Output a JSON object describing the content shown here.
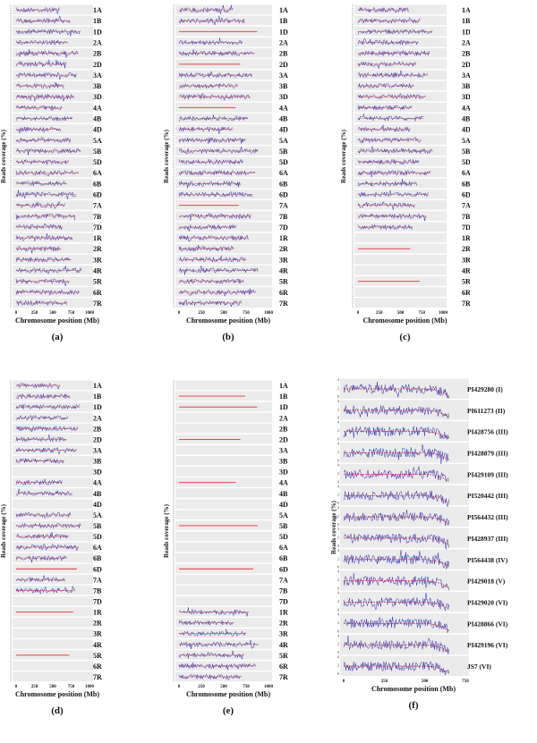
{
  "chart_data": [
    {
      "type": "line",
      "panel_label": "(a)",
      "xlabel": "Chromosome position (Mb)",
      "ylabel": "Reads coverage (%)",
      "xticks": [
        "0",
        "250",
        "500",
        "750",
        "1000"
      ],
      "xlim": [
        0,
        1000
      ],
      "rows": [
        "1A",
        "1B",
        "1D",
        "2A",
        "2B",
        "2D",
        "3A",
        "3B",
        "3D",
        "4A",
        "4B",
        "4D",
        "5A",
        "5B",
        "5D",
        "6A",
        "6B",
        "6D",
        "7A",
        "7B",
        "7D",
        "1R",
        "2R",
        "3R",
        "4R",
        "5R",
        "6R",
        "7R"
      ],
      "coverage": [
        "full",
        "full",
        "full",
        "full",
        "full",
        "full",
        "full",
        "full",
        "full",
        "full",
        "full",
        "full",
        "full",
        "full",
        "full",
        "full",
        "full",
        "full",
        "full",
        "full",
        "full",
        "full",
        "full",
        "full",
        "full",
        "full",
        "full",
        "full"
      ]
    },
    {
      "type": "line",
      "panel_label": "(b)",
      "xlabel": "Chromosome position (Mb)",
      "ylabel": "Reads coverage (%)",
      "xticks": [
        "0",
        "250",
        "500",
        "750",
        "1000"
      ],
      "xlim": [
        0,
        1000
      ],
      "rows": [
        "1A",
        "1B",
        "1D",
        "2A",
        "2B",
        "2D",
        "3A",
        "3B",
        "3D",
        "4A",
        "4B",
        "4D",
        "5A",
        "5B",
        "5D",
        "6A",
        "6B",
        "6D",
        "7A",
        "7B",
        "7D",
        "1R",
        "2R",
        "3R",
        "4R",
        "5R",
        "6R",
        "7R"
      ],
      "coverage": [
        "full",
        "full",
        "line",
        "full",
        "full",
        "line",
        "full",
        "full",
        "full",
        "line",
        "full",
        "full",
        "full",
        "full",
        "full",
        "full",
        "full",
        "full",
        "line",
        "full",
        "full",
        "full",
        "full",
        "full",
        "full",
        "full",
        "full",
        "full"
      ]
    },
    {
      "type": "line",
      "panel_label": "(c)",
      "xlabel": "Chromosome position (Mb)",
      "ylabel": "Reads coverage (%)",
      "xticks": [
        "0",
        "250",
        "500",
        "750",
        "1000"
      ],
      "xlim": [
        0,
        1000
      ],
      "rows": [
        "1A",
        "1B",
        "1D",
        "2A",
        "2B",
        "2D",
        "3A",
        "3B",
        "3D",
        "4A",
        "4B",
        "4D",
        "5A",
        "5B",
        "5D",
        "6A",
        "6B",
        "6D",
        "7A",
        "7B",
        "7D",
        "1R",
        "2R",
        "3R",
        "4R",
        "5R",
        "6R",
        "7R"
      ],
      "coverage": [
        "full",
        "full",
        "full",
        "full",
        "full",
        "full",
        "full",
        "full",
        "full",
        "full",
        "full",
        "full",
        "full",
        "full",
        "full",
        "full",
        "full",
        "full",
        "full",
        "full",
        "full",
        "empty",
        "line",
        "empty",
        "empty",
        "line",
        "empty",
        "empty"
      ]
    },
    {
      "type": "line",
      "panel_label": "(d)",
      "xlabel": "Chromosome position (Mb)",
      "ylabel": "Reads coverage (%)",
      "xticks": [
        "0",
        "250",
        "500",
        "750",
        "1000"
      ],
      "xlim": [
        0,
        1000
      ],
      "rows": [
        "1A",
        "1B",
        "1D",
        "2A",
        "2B",
        "2D",
        "3A",
        "3B",
        "3D",
        "4A",
        "4B",
        "4D",
        "5A",
        "5B",
        "5D",
        "6A",
        "6B",
        "6D",
        "7A",
        "7B",
        "7D",
        "1R",
        "2R",
        "3R",
        "4R",
        "5R",
        "6R",
        "7R"
      ],
      "coverage": [
        "full",
        "full",
        "full",
        "full",
        "full",
        "full",
        "full",
        "full",
        "empty",
        "full",
        "full",
        "empty",
        "full",
        "full",
        "full",
        "full",
        "full",
        "line",
        "full",
        "full",
        "empty",
        "line",
        "empty",
        "empty",
        "empty",
        "line",
        "empty",
        "empty"
      ]
    },
    {
      "type": "line",
      "panel_label": "(e)",
      "xlabel": "Chromosome position (Mb)",
      "ylabel": "Reads coverage (%)",
      "xticks": [
        "0",
        "250",
        "500",
        "750",
        "1000"
      ],
      "xlim": [
        0,
        1000
      ],
      "rows": [
        "1A",
        "1B",
        "1D",
        "2A",
        "2B",
        "2D",
        "3A",
        "3B",
        "3D",
        "4A",
        "4B",
        "4D",
        "5A",
        "5B",
        "5D",
        "6A",
        "6B",
        "6D",
        "7A",
        "7B",
        "7D",
        "1R",
        "2R",
        "3R",
        "4R",
        "5R",
        "6R",
        "7R"
      ],
      "coverage": [
        "empty",
        "line",
        "line",
        "empty",
        "empty",
        "line",
        "empty",
        "empty",
        "empty",
        "line",
        "empty",
        "empty",
        "empty",
        "line",
        "empty",
        "empty",
        "empty",
        "line",
        "empty",
        "empty",
        "empty",
        "full",
        "full",
        "full",
        "full",
        "full",
        "full",
        "full"
      ]
    },
    {
      "type": "line",
      "panel_label": "(f)",
      "xlabel": "Chromosome position (Mb)",
      "ylabel": "Reads coverage (%)",
      "xticks": [
        "0",
        "250",
        "500",
        "750"
      ],
      "xlim": [
        0,
        750
      ],
      "yticks": [
        "0",
        "2",
        "4"
      ],
      "ylim": [
        0,
        5
      ],
      "rows": [
        "PI429280 (I)",
        "PI611273 (II)",
        "PI428756 (III)",
        "PI428879 (III)",
        "PI429109 (III)",
        "PI520442 (III)",
        "PI564432 (III)",
        "PI428937 (III)",
        "PI564438 (IV)",
        "PI429018 (V)",
        "PI429020 (VI)",
        "PI428866 (VI)",
        "PI429196 (VI)",
        "JS7 (VI)"
      ]
    }
  ],
  "colors": {
    "trace": "#2b2bb8",
    "trend": "#e0302a",
    "panel_bg": "#ebebeb"
  }
}
